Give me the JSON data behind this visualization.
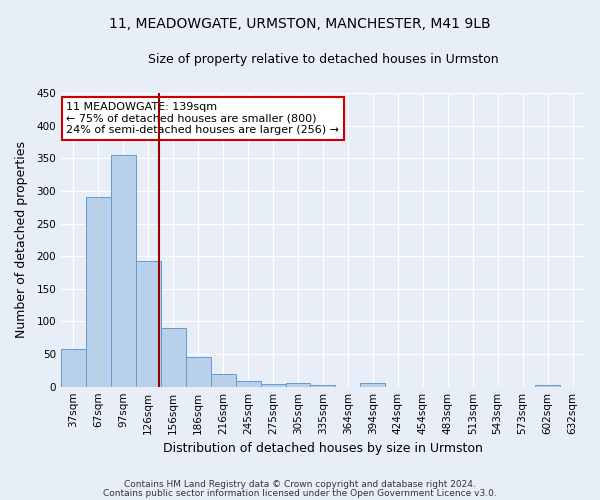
{
  "title1": "11, MEADOWGATE, URMSTON, MANCHESTER, M41 9LB",
  "title2": "Size of property relative to detached houses in Urmston",
  "xlabel": "Distribution of detached houses by size in Urmston",
  "ylabel": "Number of detached properties",
  "footnote1": "Contains HM Land Registry data © Crown copyright and database right 2024.",
  "footnote2": "Contains public sector information licensed under the Open Government Licence v3.0.",
  "categories": [
    "37sqm",
    "67sqm",
    "97sqm",
    "126sqm",
    "156sqm",
    "186sqm",
    "216sqm",
    "245sqm",
    "275sqm",
    "305sqm",
    "335sqm",
    "364sqm",
    "394sqm",
    "424sqm",
    "454sqm",
    "483sqm",
    "513sqm",
    "543sqm",
    "573sqm",
    "602sqm",
    "632sqm"
  ],
  "values": [
    58,
    290,
    355,
    192,
    90,
    46,
    20,
    9,
    4,
    5,
    3,
    0,
    5,
    0,
    0,
    0,
    0,
    0,
    0,
    3,
    0
  ],
  "bar_color": "#b8d0ea",
  "bar_edge_color": "#6699cc",
  "background_color": "#e8eef8",
  "grid_color": "#ffffff",
  "vline_x": 3.43,
  "vline_color": "#990000",
  "annotation_line1": "11 MEADOWGATE: 139sqm",
  "annotation_line2": "← 75% of detached houses are smaller (800)",
  "annotation_line3": "24% of semi-detached houses are larger (256) →",
  "annotation_box_color": "#ffffff",
  "annotation_box_edge_color": "#cc0000",
  "ylim": [
    0,
    450
  ],
  "yticks": [
    0,
    50,
    100,
    150,
    200,
    250,
    300,
    350,
    400,
    450
  ],
  "title1_fontsize": 10,
  "title2_fontsize": 9,
  "xlabel_fontsize": 9,
  "ylabel_fontsize": 9,
  "tick_fontsize": 7.5,
  "annot_fontsize": 8,
  "footnote_fontsize": 6.5
}
